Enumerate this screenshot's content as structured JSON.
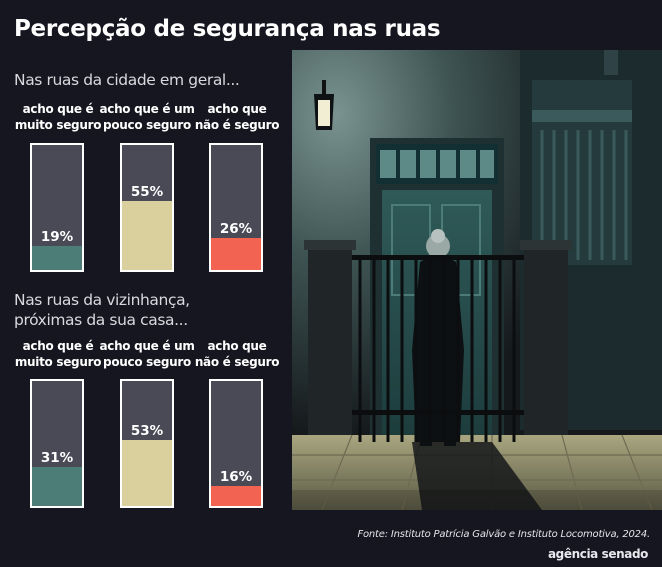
{
  "title": "Percepção de segurança nas ruas",
  "source": "Fonte: Instituto Patrícia Galvão e Instituto Locomotiva, 2024.",
  "logo": "agência senado",
  "colors": {
    "background": "#161620",
    "bar_empty": "#4a4a57",
    "muito_seguro": "#4d7d77",
    "pouco_seguro": "#d9d09e",
    "nao_seguro": "#f26352"
  },
  "chart_data": [
    {
      "type": "bar",
      "title": "Nas ruas da cidade em geral...",
      "title_lines": [
        "Nas ruas da cidade em geral..."
      ],
      "categories": [
        "acho que é muito seguro",
        "acho que é um pouco seguro",
        "acho que não é seguro"
      ],
      "category_lines": [
        [
          "acho que é",
          "muito seguro"
        ],
        [
          "acho que é um",
          "pouco seguro"
        ],
        [
          "acho que",
          "não é seguro"
        ]
      ],
      "values": [
        19,
        55,
        26
      ],
      "value_labels": [
        "19%",
        "55%",
        "26%"
      ],
      "ylim": [
        0,
        100
      ],
      "grid": false
    },
    {
      "type": "bar",
      "title": "Nas ruas da vizinhança, próximas da sua casa...",
      "title_lines": [
        "Nas ruas da vizinhança,",
        "próximas da sua casa..."
      ],
      "categories": [
        "acho que é muito seguro",
        "acho que é um pouco seguro",
        "acho que não é seguro"
      ],
      "category_lines": [
        [
          "acho que é",
          "muito seguro"
        ],
        [
          "acho que é um",
          "pouco seguro"
        ],
        [
          "acho que",
          "não é seguro"
        ]
      ],
      "values": [
        31,
        53,
        16
      ],
      "value_labels": [
        "31%",
        "53%",
        "16%"
      ],
      "ylim": [
        0,
        100
      ],
      "grid": false
    }
  ]
}
